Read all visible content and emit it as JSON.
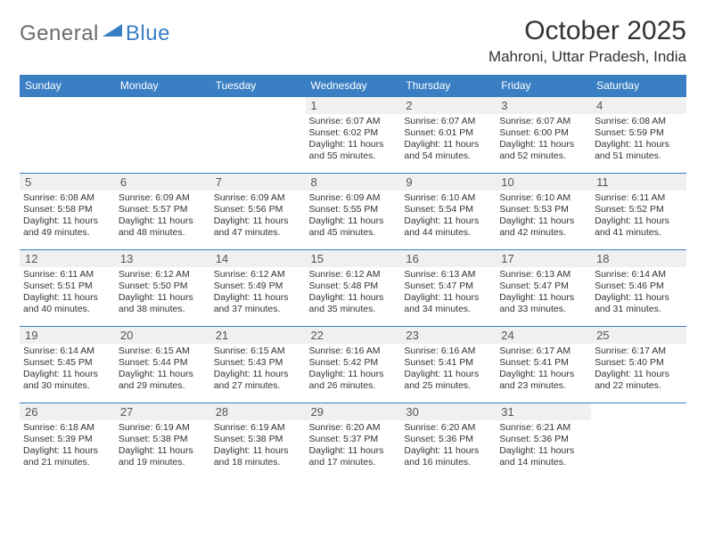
{
  "logo": {
    "general": "General",
    "blue": "Blue"
  },
  "title": "October 2025",
  "location": "Mahroni, Uttar Pradesh, India",
  "colors": {
    "accent": "#3a7fc4",
    "header_text": "#ffffff",
    "body_text": "#333333",
    "daynum_bg": "#f0f0f0",
    "daynum_text": "#555555",
    "logo_gray": "#6b6b6b"
  },
  "day_headers": [
    "Sunday",
    "Monday",
    "Tuesday",
    "Wednesday",
    "Thursday",
    "Friday",
    "Saturday"
  ],
  "weeks": [
    [
      null,
      null,
      null,
      {
        "n": "1",
        "sr": "Sunrise: 6:07 AM",
        "ss": "Sunset: 6:02 PM",
        "d1": "Daylight: 11 hours",
        "d2": "and 55 minutes."
      },
      {
        "n": "2",
        "sr": "Sunrise: 6:07 AM",
        "ss": "Sunset: 6:01 PM",
        "d1": "Daylight: 11 hours",
        "d2": "and 54 minutes."
      },
      {
        "n": "3",
        "sr": "Sunrise: 6:07 AM",
        "ss": "Sunset: 6:00 PM",
        "d1": "Daylight: 11 hours",
        "d2": "and 52 minutes."
      },
      {
        "n": "4",
        "sr": "Sunrise: 6:08 AM",
        "ss": "Sunset: 5:59 PM",
        "d1": "Daylight: 11 hours",
        "d2": "and 51 minutes."
      }
    ],
    [
      {
        "n": "5",
        "sr": "Sunrise: 6:08 AM",
        "ss": "Sunset: 5:58 PM",
        "d1": "Daylight: 11 hours",
        "d2": "and 49 minutes."
      },
      {
        "n": "6",
        "sr": "Sunrise: 6:09 AM",
        "ss": "Sunset: 5:57 PM",
        "d1": "Daylight: 11 hours",
        "d2": "and 48 minutes."
      },
      {
        "n": "7",
        "sr": "Sunrise: 6:09 AM",
        "ss": "Sunset: 5:56 PM",
        "d1": "Daylight: 11 hours",
        "d2": "and 47 minutes."
      },
      {
        "n": "8",
        "sr": "Sunrise: 6:09 AM",
        "ss": "Sunset: 5:55 PM",
        "d1": "Daylight: 11 hours",
        "d2": "and 45 minutes."
      },
      {
        "n": "9",
        "sr": "Sunrise: 6:10 AM",
        "ss": "Sunset: 5:54 PM",
        "d1": "Daylight: 11 hours",
        "d2": "and 44 minutes."
      },
      {
        "n": "10",
        "sr": "Sunrise: 6:10 AM",
        "ss": "Sunset: 5:53 PM",
        "d1": "Daylight: 11 hours",
        "d2": "and 42 minutes."
      },
      {
        "n": "11",
        "sr": "Sunrise: 6:11 AM",
        "ss": "Sunset: 5:52 PM",
        "d1": "Daylight: 11 hours",
        "d2": "and 41 minutes."
      }
    ],
    [
      {
        "n": "12",
        "sr": "Sunrise: 6:11 AM",
        "ss": "Sunset: 5:51 PM",
        "d1": "Daylight: 11 hours",
        "d2": "and 40 minutes."
      },
      {
        "n": "13",
        "sr": "Sunrise: 6:12 AM",
        "ss": "Sunset: 5:50 PM",
        "d1": "Daylight: 11 hours",
        "d2": "and 38 minutes."
      },
      {
        "n": "14",
        "sr": "Sunrise: 6:12 AM",
        "ss": "Sunset: 5:49 PM",
        "d1": "Daylight: 11 hours",
        "d2": "and 37 minutes."
      },
      {
        "n": "15",
        "sr": "Sunrise: 6:12 AM",
        "ss": "Sunset: 5:48 PM",
        "d1": "Daylight: 11 hours",
        "d2": "and 35 minutes."
      },
      {
        "n": "16",
        "sr": "Sunrise: 6:13 AM",
        "ss": "Sunset: 5:47 PM",
        "d1": "Daylight: 11 hours",
        "d2": "and 34 minutes."
      },
      {
        "n": "17",
        "sr": "Sunrise: 6:13 AM",
        "ss": "Sunset: 5:47 PM",
        "d1": "Daylight: 11 hours",
        "d2": "and 33 minutes."
      },
      {
        "n": "18",
        "sr": "Sunrise: 6:14 AM",
        "ss": "Sunset: 5:46 PM",
        "d1": "Daylight: 11 hours",
        "d2": "and 31 minutes."
      }
    ],
    [
      {
        "n": "19",
        "sr": "Sunrise: 6:14 AM",
        "ss": "Sunset: 5:45 PM",
        "d1": "Daylight: 11 hours",
        "d2": "and 30 minutes."
      },
      {
        "n": "20",
        "sr": "Sunrise: 6:15 AM",
        "ss": "Sunset: 5:44 PM",
        "d1": "Daylight: 11 hours",
        "d2": "and 29 minutes."
      },
      {
        "n": "21",
        "sr": "Sunrise: 6:15 AM",
        "ss": "Sunset: 5:43 PM",
        "d1": "Daylight: 11 hours",
        "d2": "and 27 minutes."
      },
      {
        "n": "22",
        "sr": "Sunrise: 6:16 AM",
        "ss": "Sunset: 5:42 PM",
        "d1": "Daylight: 11 hours",
        "d2": "and 26 minutes."
      },
      {
        "n": "23",
        "sr": "Sunrise: 6:16 AM",
        "ss": "Sunset: 5:41 PM",
        "d1": "Daylight: 11 hours",
        "d2": "and 25 minutes."
      },
      {
        "n": "24",
        "sr": "Sunrise: 6:17 AM",
        "ss": "Sunset: 5:41 PM",
        "d1": "Daylight: 11 hours",
        "d2": "and 23 minutes."
      },
      {
        "n": "25",
        "sr": "Sunrise: 6:17 AM",
        "ss": "Sunset: 5:40 PM",
        "d1": "Daylight: 11 hours",
        "d2": "and 22 minutes."
      }
    ],
    [
      {
        "n": "26",
        "sr": "Sunrise: 6:18 AM",
        "ss": "Sunset: 5:39 PM",
        "d1": "Daylight: 11 hours",
        "d2": "and 21 minutes."
      },
      {
        "n": "27",
        "sr": "Sunrise: 6:19 AM",
        "ss": "Sunset: 5:38 PM",
        "d1": "Daylight: 11 hours",
        "d2": "and 19 minutes."
      },
      {
        "n": "28",
        "sr": "Sunrise: 6:19 AM",
        "ss": "Sunset: 5:38 PM",
        "d1": "Daylight: 11 hours",
        "d2": "and 18 minutes."
      },
      {
        "n": "29",
        "sr": "Sunrise: 6:20 AM",
        "ss": "Sunset: 5:37 PM",
        "d1": "Daylight: 11 hours",
        "d2": "and 17 minutes."
      },
      {
        "n": "30",
        "sr": "Sunrise: 6:20 AM",
        "ss": "Sunset: 5:36 PM",
        "d1": "Daylight: 11 hours",
        "d2": "and 16 minutes."
      },
      {
        "n": "31",
        "sr": "Sunrise: 6:21 AM",
        "ss": "Sunset: 5:36 PM",
        "d1": "Daylight: 11 hours",
        "d2": "and 14 minutes."
      },
      null
    ]
  ]
}
